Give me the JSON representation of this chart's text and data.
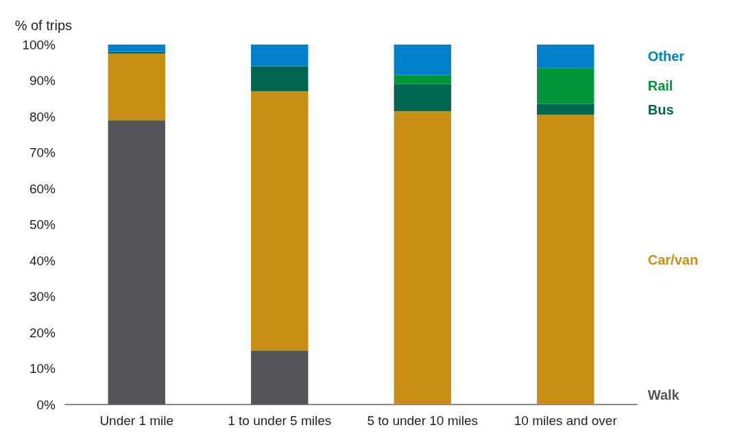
{
  "chart_data": {
    "type": "bar",
    "stacked": true,
    "ylabel": "% of trips",
    "categories": [
      "Under 1 mile",
      "1 to under 5 miles",
      "5 to under 10 miles",
      "10 miles and over"
    ],
    "series": [
      {
        "name": "Walk",
        "color": "#54565b",
        "values": [
          79,
          15,
          0,
          0
        ]
      },
      {
        "name": "Car/van",
        "color": "#c88f14",
        "values": [
          18.5,
          72,
          81.5,
          80.5
        ]
      },
      {
        "name": "Bus",
        "color": "#00664f",
        "values": [
          0.5,
          7,
          7.5,
          3
        ]
      },
      {
        "name": "Rail",
        "color": "#00973a",
        "values": [
          0,
          0,
          2.5,
          10
        ]
      },
      {
        "name": "Other",
        "color": "#0080c8",
        "values": [
          2,
          6,
          8.5,
          6.5
        ]
      }
    ],
    "ylim": [
      0,
      100
    ],
    "yticks": [
      {
        "value": 0,
        "label": "0%"
      },
      {
        "value": 10,
        "label": "10%"
      },
      {
        "value": 20,
        "label": "20%"
      },
      {
        "value": 30,
        "label": "30%"
      },
      {
        "value": 40,
        "label": "40%"
      },
      {
        "value": 50,
        "label": "50%"
      },
      {
        "value": 60,
        "label": "60%"
      },
      {
        "value": 70,
        "label": "70%"
      },
      {
        "value": 80,
        "label": "80%"
      },
      {
        "value": 90,
        "label": "90%"
      },
      {
        "value": 100,
        "label": "100%"
      }
    ],
    "grid": false,
    "legend": "right"
  }
}
